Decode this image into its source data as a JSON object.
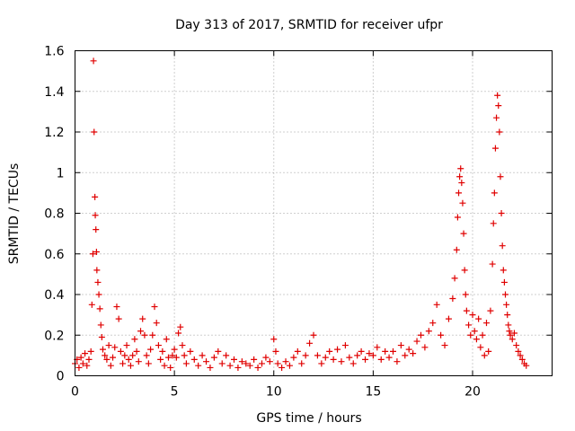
{
  "chart_data": {
    "type": "scatter",
    "title": "Day 313 of 2017, SRMTID for receiver ufpr",
    "xlabel": "GPS time / hours",
    "ylabel": "SRMTID / TECUs",
    "xlim": [
      0,
      24
    ],
    "ylim": [
      0,
      1.6
    ],
    "xticks": [
      0,
      5,
      10,
      15,
      20
    ],
    "xtick_labels": [
      "0",
      "5",
      "10",
      "15",
      "20"
    ],
    "yticks": [
      0,
      0.2,
      0.4,
      0.6,
      0.8,
      1.0,
      1.2,
      1.4,
      1.6
    ],
    "ytick_labels": [
      "0",
      "0.2",
      "0.4",
      "0.6",
      "0.8",
      "1",
      "1.2",
      "1.4",
      "1.6"
    ],
    "grid": true,
    "marker": "+",
    "color": "#e00000",
    "series": [
      {
        "name": "SRMTID",
        "points": [
          [
            0.0,
            0.06
          ],
          [
            0.1,
            0.08
          ],
          [
            0.2,
            0.04
          ],
          [
            0.3,
            0.09
          ],
          [
            0.4,
            0.06
          ],
          [
            0.5,
            0.11
          ],
          [
            0.6,
            0.05
          ],
          [
            0.7,
            0.08
          ],
          [
            0.8,
            0.12
          ],
          [
            0.85,
            0.35
          ],
          [
            0.9,
            0.6
          ],
          [
            0.93,
            1.55
          ],
          [
            0.96,
            1.2
          ],
          [
            1.0,
            0.88
          ],
          [
            1.02,
            0.79
          ],
          [
            1.05,
            0.72
          ],
          [
            1.08,
            0.61
          ],
          [
            1.1,
            0.52
          ],
          [
            1.15,
            0.46
          ],
          [
            1.2,
            0.4
          ],
          [
            1.25,
            0.33
          ],
          [
            1.3,
            0.25
          ],
          [
            1.35,
            0.19
          ],
          [
            1.4,
            0.13
          ],
          [
            1.5,
            0.1
          ],
          [
            1.6,
            0.08
          ],
          [
            1.7,
            0.15
          ],
          [
            1.8,
            0.05
          ],
          [
            1.9,
            0.09
          ],
          [
            2.0,
            0.14
          ],
          [
            2.1,
            0.34
          ],
          [
            2.2,
            0.28
          ],
          [
            2.3,
            0.12
          ],
          [
            2.4,
            0.06
          ],
          [
            2.5,
            0.1
          ],
          [
            2.6,
            0.15
          ],
          [
            2.7,
            0.08
          ],
          [
            2.8,
            0.05
          ],
          [
            2.9,
            0.1
          ],
          [
            3.0,
            0.18
          ],
          [
            3.1,
            0.12
          ],
          [
            3.2,
            0.07
          ],
          [
            3.3,
            0.22
          ],
          [
            3.4,
            0.28
          ],
          [
            3.5,
            0.2
          ],
          [
            3.6,
            0.1
          ],
          [
            3.7,
            0.06
          ],
          [
            3.8,
            0.13
          ],
          [
            3.9,
            0.2
          ],
          [
            4.0,
            0.34
          ],
          [
            4.1,
            0.26
          ],
          [
            4.2,
            0.15
          ],
          [
            4.3,
            0.08
          ],
          [
            4.4,
            0.12
          ],
          [
            4.5,
            0.05
          ],
          [
            4.6,
            0.18
          ],
          [
            4.7,
            0.09
          ],
          [
            4.8,
            0.04
          ],
          [
            4.9,
            0.1
          ],
          [
            5.0,
            0.13
          ],
          [
            5.1,
            0.09
          ],
          [
            5.2,
            0.21
          ],
          [
            5.3,
            0.24
          ],
          [
            5.4,
            0.15
          ],
          [
            5.5,
            0.1
          ],
          [
            5.6,
            0.06
          ],
          [
            5.8,
            0.12
          ],
          [
            6.0,
            0.08
          ],
          [
            6.2,
            0.05
          ],
          [
            6.4,
            0.1
          ],
          [
            6.6,
            0.07
          ],
          [
            6.8,
            0.04
          ],
          [
            7.0,
            0.09
          ],
          [
            7.2,
            0.12
          ],
          [
            7.4,
            0.06
          ],
          [
            7.6,
            0.1
          ],
          [
            7.8,
            0.05
          ],
          [
            8.0,
            0.08
          ],
          [
            8.2,
            0.04
          ],
          [
            8.4,
            0.07
          ],
          [
            8.6,
            0.06
          ],
          [
            8.8,
            0.05
          ],
          [
            9.0,
            0.08
          ],
          [
            9.2,
            0.04
          ],
          [
            9.4,
            0.06
          ],
          [
            9.6,
            0.09
          ],
          [
            9.8,
            0.07
          ],
          [
            10.0,
            0.18
          ],
          [
            10.1,
            0.12
          ],
          [
            10.2,
            0.06
          ],
          [
            10.4,
            0.04
          ],
          [
            10.6,
            0.07
          ],
          [
            10.8,
            0.05
          ],
          [
            11.0,
            0.09
          ],
          [
            11.2,
            0.12
          ],
          [
            11.4,
            0.06
          ],
          [
            11.6,
            0.1
          ],
          [
            11.8,
            0.16
          ],
          [
            12.0,
            0.2
          ],
          [
            12.2,
            0.1
          ],
          [
            12.4,
            0.06
          ],
          [
            12.6,
            0.09
          ],
          [
            12.8,
            0.12
          ],
          [
            13.0,
            0.08
          ],
          [
            13.2,
            0.13
          ],
          [
            13.4,
            0.07
          ],
          [
            13.6,
            0.15
          ],
          [
            13.8,
            0.09
          ],
          [
            14.0,
            0.06
          ],
          [
            14.2,
            0.1
          ],
          [
            14.4,
            0.12
          ],
          [
            14.6,
            0.08
          ],
          [
            14.8,
            0.11
          ],
          [
            15.0,
            0.1
          ],
          [
            15.2,
            0.14
          ],
          [
            15.4,
            0.08
          ],
          [
            15.6,
            0.12
          ],
          [
            15.8,
            0.09
          ],
          [
            16.0,
            0.12
          ],
          [
            16.2,
            0.07
          ],
          [
            16.4,
            0.15
          ],
          [
            16.6,
            0.1
          ],
          [
            16.8,
            0.13
          ],
          [
            17.0,
            0.11
          ],
          [
            17.2,
            0.17
          ],
          [
            17.4,
            0.2
          ],
          [
            17.6,
            0.14
          ],
          [
            17.8,
            0.22
          ],
          [
            18.0,
            0.26
          ],
          [
            18.2,
            0.35
          ],
          [
            18.4,
            0.2
          ],
          [
            18.6,
            0.15
          ],
          [
            18.8,
            0.28
          ],
          [
            19.0,
            0.38
          ],
          [
            19.1,
            0.48
          ],
          [
            19.2,
            0.62
          ],
          [
            19.25,
            0.78
          ],
          [
            19.3,
            0.9
          ],
          [
            19.35,
            0.98
          ],
          [
            19.4,
            1.02
          ],
          [
            19.45,
            0.95
          ],
          [
            19.5,
            0.85
          ],
          [
            19.55,
            0.7
          ],
          [
            19.6,
            0.52
          ],
          [
            19.65,
            0.4
          ],
          [
            19.7,
            0.32
          ],
          [
            19.8,
            0.25
          ],
          [
            19.9,
            0.2
          ],
          [
            20.0,
            0.3
          ],
          [
            20.1,
            0.22
          ],
          [
            20.2,
            0.18
          ],
          [
            20.3,
            0.28
          ],
          [
            20.4,
            0.14
          ],
          [
            20.5,
            0.2
          ],
          [
            20.6,
            0.1
          ],
          [
            20.7,
            0.26
          ],
          [
            20.8,
            0.12
          ],
          [
            20.9,
            0.32
          ],
          [
            21.0,
            0.55
          ],
          [
            21.05,
            0.75
          ],
          [
            21.1,
            0.9
          ],
          [
            21.15,
            1.12
          ],
          [
            21.2,
            1.27
          ],
          [
            21.25,
            1.38
          ],
          [
            21.3,
            1.33
          ],
          [
            21.35,
            1.2
          ],
          [
            21.4,
            0.98
          ],
          [
            21.45,
            0.8
          ],
          [
            21.5,
            0.64
          ],
          [
            21.55,
            0.52
          ],
          [
            21.6,
            0.46
          ],
          [
            21.65,
            0.4
          ],
          [
            21.7,
            0.35
          ],
          [
            21.75,
            0.3
          ],
          [
            21.8,
            0.25
          ],
          [
            21.85,
            0.22
          ],
          [
            21.9,
            0.2
          ],
          [
            22.0,
            0.18
          ],
          [
            22.1,
            0.21
          ],
          [
            22.2,
            0.15
          ],
          [
            22.3,
            0.12
          ],
          [
            22.4,
            0.1
          ],
          [
            22.5,
            0.08
          ],
          [
            22.6,
            0.06
          ],
          [
            22.7,
            0.05
          ]
        ]
      }
    ]
  }
}
